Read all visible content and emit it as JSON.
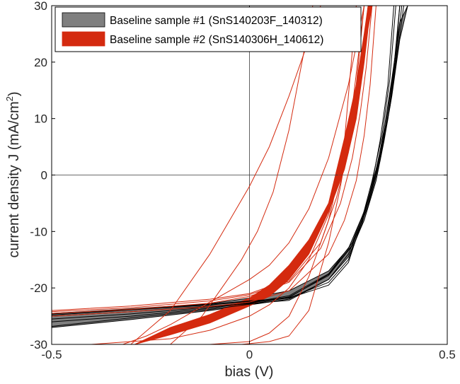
{
  "chart_data": {
    "type": "line",
    "xlabel": "bias (V)",
    "ylabel": "current density J (mA/cm",
    "ylabel_superscript": "2",
    "ylabel_suffix": ")",
    "xlim": [
      -0.5,
      0.5
    ],
    "ylim": [
      -30,
      30
    ],
    "x_ticks": [
      -0.5,
      0,
      0.5
    ],
    "x_tick_labels": [
      "-0.5",
      "0",
      "0.5"
    ],
    "y_ticks": [
      -30,
      -20,
      -10,
      0,
      10,
      20,
      30
    ],
    "y_tick_labels": [
      "-30",
      "-20",
      "-10",
      "0",
      "10",
      "20",
      "30"
    ],
    "zero_lines": true,
    "legend_position": "top-left",
    "colors": {
      "sample1_fill": "#7f7f7f",
      "sample1_line": "#000000",
      "sample2_fill": "#d42a0f",
      "sample2_line": "#d42a0f",
      "frame": "#000000",
      "zero_line": "#3a3a3a"
    },
    "series": [
      {
        "name": "Baseline sample #1 (SnS140203F_140312)",
        "band": {
          "x": [
            -0.5,
            -0.3,
            -0.1,
            0,
            0.1,
            0.2,
            0.25,
            0.29,
            0.32,
            0.34,
            0.36,
            0.38,
            0.4
          ],
          "lower": [
            -27,
            -25.6,
            -24,
            -23,
            -22,
            -18.5,
            -14.5,
            -8,
            -1,
            6,
            14,
            24,
            30
          ],
          "upper": [
            -24.5,
            -23.7,
            -22.8,
            -21.8,
            -20.5,
            -17,
            -13,
            -6.5,
            0.5,
            8,
            17,
            27,
            30
          ]
        },
        "curves": [
          {
            "x": [
              -0.5,
              -0.3,
              -0.1,
              0,
              0.1,
              0.2,
              0.26,
              0.3,
              0.33,
              0.35,
              0.37,
              0.385
            ],
            "y": [
              -25.5,
              -24.6,
              -23.4,
              -22.7,
              -21.6,
              -17.8,
              -12.5,
              -5,
              3,
              10,
              20,
              30
            ]
          },
          {
            "x": [
              -0.5,
              -0.3,
              -0.1,
              0,
              0.1,
              0.2,
              0.26,
              0.3,
              0.33,
              0.355,
              0.375,
              0.39
            ],
            "y": [
              -26,
              -25,
              -23.6,
              -22.6,
              -21.4,
              -17.5,
              -12,
              -4.5,
              3.5,
              12,
              22,
              30
            ]
          },
          {
            "x": [
              -0.5,
              -0.3,
              -0.1,
              0,
              0.1,
              0.2,
              0.25,
              0.29,
              0.32,
              0.345,
              0.365,
              0.38
            ],
            "y": [
              -25,
              -24.2,
              -23.2,
              -22.8,
              -22.2,
              -18.5,
              -14,
              -7,
              1,
              9,
              19,
              30
            ]
          },
          {
            "x": [
              -0.5,
              -0.3,
              -0.1,
              0,
              0.1,
              0.2,
              0.25,
              0.28,
              0.31,
              0.335,
              0.355,
              0.37
            ],
            "y": [
              -24.8,
              -23.9,
              -23,
              -22.4,
              -21.8,
              -19.5,
              -15.5,
              -9,
              -1,
              7,
              17,
              30
            ]
          },
          {
            "x": [
              -0.5,
              -0.3,
              -0.1,
              0,
              0.1,
              0.2,
              0.26,
              0.3,
              0.33,
              0.35,
              0.37,
              0.38
            ],
            "y": [
              -26.8,
              -25.3,
              -23.8,
              -22.9,
              -21.7,
              -17.6,
              -12.4,
              -5.5,
              2.5,
              10,
              21,
              30
            ]
          },
          {
            "x": [
              -0.5,
              -0.3,
              -0.1,
              0,
              0.1,
              0.2,
              0.25,
              0.285,
              0.31,
              0.33,
              0.35,
              0.365
            ],
            "y": [
              -24.6,
              -23.8,
              -22.9,
              -22.3,
              -21.8,
              -19,
              -15,
              -8.5,
              -1.5,
              6,
              16,
              30
            ]
          }
        ]
      },
      {
        "name": "Baseline sample #2 (SnS140306H_140612)",
        "band": {
          "x": [
            -0.29,
            -0.2,
            -0.1,
            0,
            0.05,
            0.1,
            0.15,
            0.2,
            0.24,
            0.27,
            0.29,
            0.3,
            0.31
          ],
          "lower": [
            -30,
            -28.3,
            -26.2,
            -23.2,
            -21.5,
            -18.5,
            -14,
            -6.5,
            1,
            10,
            20,
            26,
            30
          ],
          "upper": [
            -30,
            -27,
            -24.7,
            -21.8,
            -19.5,
            -16,
            -11.5,
            -5,
            6.5,
            16,
            25,
            30,
            30
          ]
        },
        "curves": [
          {
            "x": [
              -0.5,
              -0.3,
              -0.1,
              0,
              0.1,
              0.18,
              0.22,
              0.25,
              0.27,
              0.285,
              0.3
            ],
            "y": [
              -24.2,
              -23.5,
              -22.3,
              -21.2,
              -18.8,
              -12,
              -4,
              4,
              12,
              20,
              30
            ]
          },
          {
            "x": [
              -0.5,
              -0.3,
              -0.1,
              0,
              0.1,
              0.18,
              0.23,
              0.26,
              0.28,
              0.295,
              0.31
            ],
            "y": [
              -24.5,
              -23.8,
              -22.7,
              -21.5,
              -19,
              -13,
              -5,
              3,
              11,
              19,
              30
            ]
          },
          {
            "x": [
              -0.5,
              -0.3,
              -0.1,
              0,
              0.1,
              0.2,
              0.24,
              0.27,
              0.29,
              0.305,
              0.32
            ],
            "y": [
              -25,
              -24.2,
              -23.3,
              -22.5,
              -20.5,
              -14,
              -8,
              -1,
              7,
              16,
              30
            ]
          },
          {
            "x": [
              -0.5,
              -0.3,
              -0.1,
              0,
              0.1,
              0.15,
              0.2,
              0.24,
              0.265,
              0.28,
              0.3
            ],
            "y": [
              -24,
              -23.2,
              -22,
              -21,
              -18.5,
              -12,
              -6,
              2,
              10,
              18,
              30
            ]
          },
          {
            "x": [
              -0.3,
              -0.2,
              -0.1,
              -0.05,
              0,
              0.05,
              0.1,
              0.15,
              0.18
            ],
            "y": [
              -30,
              -24,
              -14,
              -8,
              -2,
              5,
              14,
              24,
              30
            ]
          },
          {
            "x": [
              -0.2,
              -0.12,
              -0.07,
              -0.02,
              0.02,
              0.06,
              0.1,
              0.13,
              0.16
            ],
            "y": [
              -30,
              -25,
              -20,
              -15,
              -10,
              -3,
              8,
              19,
              30
            ]
          },
          {
            "x": [
              -0.32,
              -0.26,
              -0.2,
              -0.15,
              -0.1,
              -0.05,
              0,
              0.05,
              0.1,
              0.15,
              0.2,
              0.25,
              0.29
            ],
            "y": [
              -30,
              -28.5,
              -26.5,
              -24.5,
              -22.5,
              -20.5,
              -18.5,
              -16,
              -12,
              -6,
              3,
              16,
              30
            ]
          },
          {
            "x": [
              -0.4,
              -0.2,
              -0.1,
              0,
              0.05,
              0.1,
              0.15,
              0.2,
              0.23,
              0.26,
              0.29
            ],
            "y": [
              -30,
              -29,
              -27.5,
              -25,
              -23,
              -20,
              -15,
              -7,
              1,
              12,
              30
            ]
          },
          {
            "x": [
              -0.1,
              0,
              0.05,
              0.1,
              0.15,
              0.2,
              0.22,
              0.24,
              0.27
            ],
            "y": [
              -30,
              -29.5,
              -28,
              -25,
              -18,
              -8,
              -2,
              6,
              30
            ]
          },
          {
            "x": [
              -0.02,
              0.05,
              0.1,
              0.15,
              0.2,
              0.23,
              0.25,
              0.27,
              0.29
            ],
            "y": [
              -30,
              -29.5,
              -28.5,
              -24,
              -12,
              -2,
              6,
              16,
              30
            ]
          }
        ]
      }
    ]
  }
}
